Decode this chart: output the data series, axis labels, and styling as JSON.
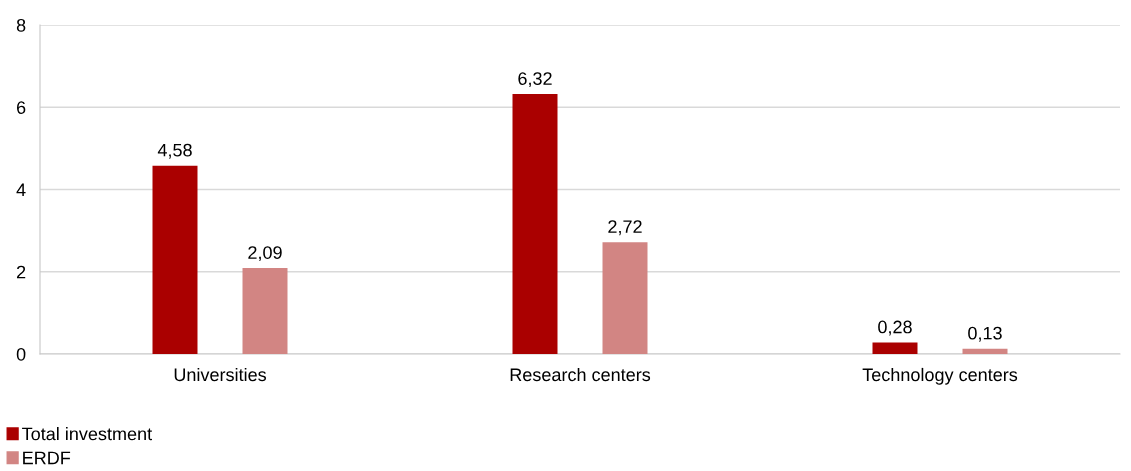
{
  "chart_data": {
    "type": "bar",
    "categories": [
      "Universities",
      "Research centers",
      "Technology centers"
    ],
    "series": [
      {
        "name": "Total investment",
        "color": "#aa0000",
        "values": [
          4.58,
          6.32,
          0.28
        ],
        "value_labels": [
          "4,58",
          "6,32",
          "0,28"
        ]
      },
      {
        "name": "ERDF",
        "color": "#d28583",
        "values": [
          2.09,
          2.72,
          0.13
        ],
        "value_labels": [
          "2,09",
          "2,72",
          "0,13"
        ]
      }
    ],
    "ylim": [
      0,
      8
    ],
    "yticks": [
      0,
      2,
      4,
      6,
      8
    ],
    "grid": "y",
    "legend": "bottom left"
  }
}
